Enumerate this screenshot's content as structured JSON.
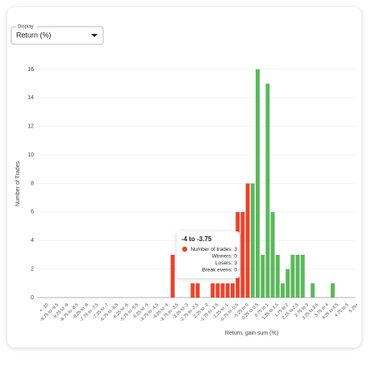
{
  "display": {
    "label": "Display",
    "selected": "Return (%)"
  },
  "chart_data": {
    "type": "bar",
    "y_label": "Number of Trades",
    "x_label": "Return, gain sum (%)",
    "categories": [
      "< -10",
      null,
      "-9.75 to -9.5",
      null,
      "-9.25 to -9",
      null,
      "-8.75 to -8.5",
      null,
      "-8.25 to -8",
      null,
      "-7.75 to -7.5",
      null,
      "-7.25 to -7",
      null,
      "-6.75 to -6.5",
      null,
      "-6.25 to -6",
      null,
      "-5.75 to -5.5",
      null,
      "-5.25 to -5",
      null,
      "-4.75 to -4.5",
      null,
      "-4.25 to -4",
      null,
      "-3.75 to -3.5",
      null,
      "-3.25 to -3",
      null,
      "-2.75 to -2.5",
      null,
      "-2.25 to -2",
      null,
      "-1.75 to -1.5",
      null,
      "-1.25 to -1",
      null,
      "-0.75 to -0.5",
      null,
      "-0.25 to 0",
      null,
      "0.25 to 0.5",
      null,
      "0.75 to 1",
      null,
      "1.25 to 1.5",
      null,
      "1.75 to 2",
      null,
      "2.25 to 2.5",
      null,
      "2.75 to 3",
      null,
      "3.25 to 3.5",
      null,
      "3.75 to 4",
      null,
      "4.25 to 4.5",
      null,
      "4.75 to 5",
      null,
      "5.25+"
    ],
    "values": [
      0,
      0,
      0,
      0,
      0,
      0,
      0,
      0,
      0,
      0,
      0,
      0,
      0,
      0,
      0,
      0,
      0,
      0,
      0,
      0,
      0,
      0,
      0,
      0,
      0,
      3,
      0,
      0,
      0,
      1,
      1,
      0,
      0,
      1,
      1,
      1,
      1,
      1,
      6,
      6,
      8,
      8,
      16,
      3,
      15,
      6,
      3,
      1,
      2,
      3,
      3,
      3,
      0,
      1,
      0,
      0,
      0,
      1,
      0,
      0,
      0,
      0,
      0
    ],
    "colors": [
      "#e8442e",
      "#e8442e",
      "#e8442e",
      "#e8442e",
      "#e8442e",
      "#e8442e",
      "#e8442e",
      "#e8442e",
      "#e8442e",
      "#e8442e",
      "#e8442e",
      "#e8442e",
      "#e8442e",
      "#e8442e",
      "#e8442e",
      "#e8442e",
      "#e8442e",
      "#e8442e",
      "#e8442e",
      "#e8442e",
      "#e8442e",
      "#e8442e",
      "#e8442e",
      "#e8442e",
      "#e8442e",
      "#e8442e",
      "#e8442e",
      "#e8442e",
      "#e8442e",
      "#e8442e",
      "#e8442e",
      "#e8442e",
      "#e8442e",
      "#e8442e",
      "#e8442e",
      "#e8442e",
      "#e8442e",
      "#e8442e",
      "#e8442e",
      "#e8442e",
      "#e8442e",
      "#5cb85c",
      "#5cb85c",
      "#5cb85c",
      "#5cb85c",
      "#5cb85c",
      "#5cb85c",
      "#5cb85c",
      "#5cb85c",
      "#5cb85c",
      "#5cb85c",
      "#5cb85c",
      "#5cb85c",
      "#5cb85c",
      "#5cb85c",
      "#5cb85c",
      "#5cb85c",
      "#5cb85c",
      "#5cb85c",
      "#5cb85c",
      "#5cb85c",
      "#5cb85c",
      "#5cb85c"
    ],
    "ylim": [
      0,
      16
    ],
    "yticks": [
      0,
      2,
      4,
      6,
      8,
      10,
      12,
      14,
      16
    ],
    "grid": true,
    "tooltip": {
      "title": "-4 to -3.75",
      "color": "#e8442e",
      "rows": [
        {
          "label": "Number of trades:",
          "value": 3
        },
        {
          "label": "Winners:",
          "value": 0
        },
        {
          "label": "Losers:",
          "value": 3
        },
        {
          "label": "Break evens:",
          "value": 0
        }
      ]
    }
  }
}
